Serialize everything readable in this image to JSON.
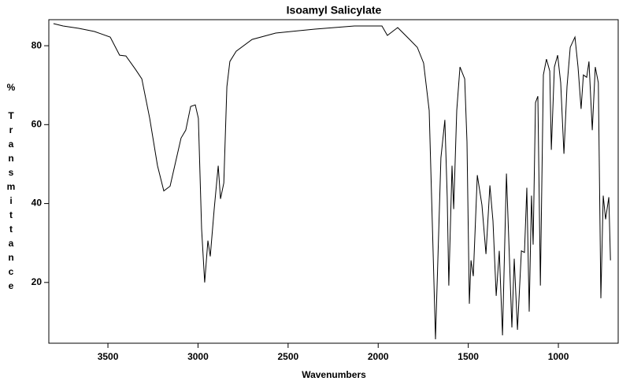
{
  "chart_data": {
    "type": "line",
    "title": "Isoamyl Salicylate",
    "xlabel": "Wavenumbers",
    "ylabel": "% Transmittance",
    "color": "#000000",
    "xlim": [
      3828,
      668
    ],
    "ylim": [
      4.6,
      86.6
    ],
    "xticks": [
      3500,
      3000,
      2500,
      2000,
      1500,
      1000
    ],
    "yticks": [
      20,
      40,
      60,
      80
    ],
    "x": [
      3802,
      3749,
      3662,
      3575,
      3487,
      3435,
      3400,
      3347,
      3312,
      3268,
      3225,
      3190,
      3155,
      3129,
      3094,
      3068,
      3041,
      3015,
      2998,
      2980,
      2963,
      2945,
      2932,
      2910,
      2888,
      2875,
      2857,
      2840,
      2823,
      2788,
      2700,
      2569,
      2351,
      2132,
      1979,
      1949,
      1892,
      1826,
      1783,
      1748,
      1717,
      1695,
      1682,
      1669,
      1652,
      1630,
      1617,
      1608,
      1590,
      1581,
      1564,
      1546,
      1520,
      1507,
      1494,
      1485,
      1472,
      1450,
      1424,
      1402,
      1380,
      1363,
      1345,
      1328,
      1310,
      1288,
      1258,
      1245,
      1227,
      1205,
      1188,
      1175,
      1162,
      1149,
      1140,
      1127,
      1114,
      1100,
      1083,
      1066,
      1048,
      1039,
      1022,
      1004,
      987,
      969,
      952,
      934,
      908,
      891,
      874,
      861,
      843,
      830,
      812,
      795,
      778,
      764,
      751,
      738,
      720,
      711
    ],
    "values": [
      85.6,
      85,
      84.4,
      83.6,
      82.2,
      77.6,
      77.4,
      74,
      71.6,
      61.6,
      49.6,
      43.2,
      44.4,
      49.6,
      56.6,
      58.6,
      64.6,
      65,
      61.6,
      33.6,
      20,
      30.6,
      26.6,
      38.6,
      49.6,
      41.2,
      45.2,
      69.6,
      76,
      78.6,
      81.6,
      83.2,
      84.2,
      85,
      85,
      82.6,
      84.6,
      81.6,
      79.6,
      75.6,
      63.6,
      27.6,
      5.6,
      25.6,
      51.6,
      61.2,
      41.6,
      19.2,
      49.6,
      38.6,
      63.6,
      74.6,
      71.6,
      55.6,
      14.6,
      25.6,
      21.6,
      47.2,
      39.6,
      27.2,
      44.6,
      35.6,
      16.6,
      28,
      6.6,
      47.6,
      8.6,
      26,
      8,
      28,
      27.6,
      44,
      12.6,
      42,
      29.6,
      65.6,
      67.2,
      19.2,
      72.6,
      76.6,
      73.6,
      53.6,
      74.6,
      77.6,
      70.6,
      52.6,
      69.6,
      79.6,
      82.2,
      74.6,
      64,
      72.6,
      72,
      76,
      58.6,
      74.6,
      70.6,
      16,
      42,
      36,
      41.6,
      25.6
    ]
  }
}
